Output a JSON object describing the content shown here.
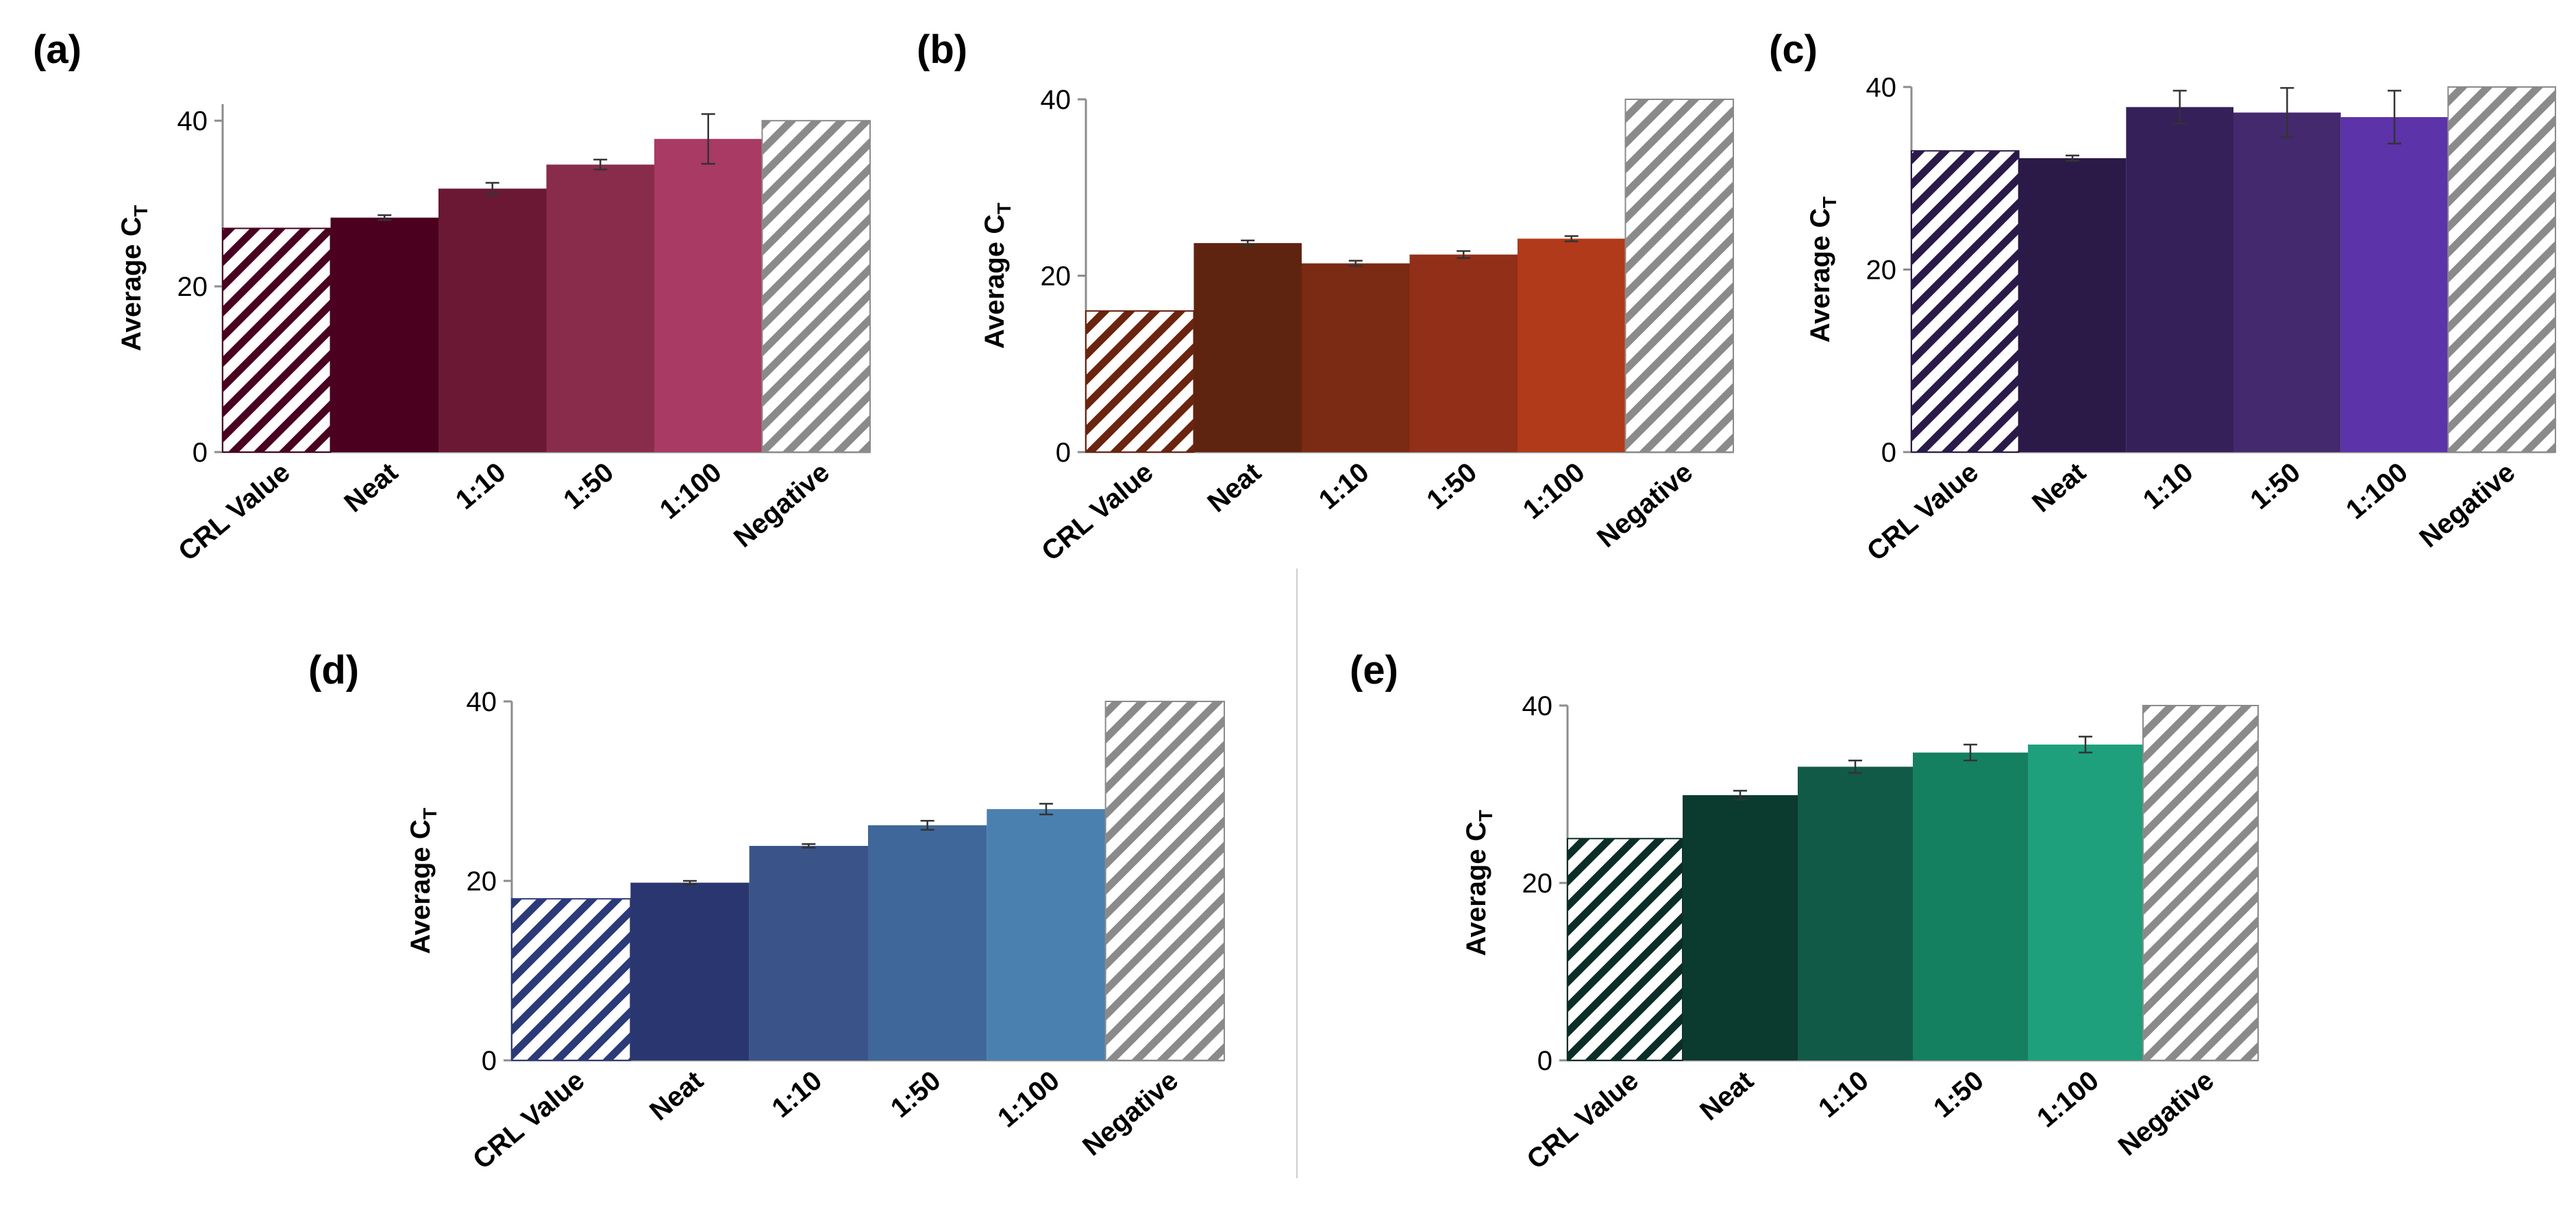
{
  "chart_data": [
    {
      "panel": "(a)",
      "type": "bar",
      "categories": [
        "CRL Value",
        "Neat",
        "1:10",
        "1:50",
        "1:100",
        "Negative"
      ],
      "values": [
        27,
        28.3,
        31.8,
        34.7,
        37.8,
        40
      ],
      "errors": [
        0,
        0.3,
        0.7,
        0.6,
        3.0,
        0
      ],
      "colors": [
        "#4a0020",
        "#4b001f",
        "#6a1834",
        "#892c4c",
        "#a83a64",
        "#8a8a8a"
      ],
      "hatched": [
        true,
        false,
        false,
        false,
        false,
        true
      ],
      "ylabel": "Average C",
      "ylabel_sub": "T",
      "ylim": [
        0,
        42
      ],
      "yticks": [
        0,
        20,
        40
      ]
    },
    {
      "panel": "(b)",
      "type": "bar",
      "categories": [
        "CRL Value",
        "Neat",
        "1:10",
        "1:50",
        "1:100",
        "Negative"
      ],
      "values": [
        16,
        23.7,
        21.4,
        22.4,
        24.2,
        40
      ],
      "errors": [
        0,
        0.3,
        0.3,
        0.4,
        0.3,
        0
      ],
      "colors": [
        "#6a2410",
        "#5f2410",
        "#7b2a13",
        "#922f18",
        "#b03a19",
        "#8a8a8a"
      ],
      "hatched": [
        true,
        false,
        false,
        false,
        false,
        true
      ],
      "ylabel": "Average C",
      "ylabel_sub": "T",
      "ylim": [
        0,
        40
      ],
      "yticks": [
        0,
        20,
        40
      ]
    },
    {
      "panel": "(c)",
      "type": "bar",
      "categories": [
        "CRL Value",
        "Neat",
        "1:10",
        "1:50",
        "1:100",
        "Negative"
      ],
      "values": [
        33,
        32.2,
        37.8,
        37.2,
        36.7,
        40
      ],
      "errors": [
        0,
        0.3,
        1.8,
        2.7,
        2.9,
        0
      ],
      "colors": [
        "#2a1a4a",
        "#2b1a48",
        "#35205a",
        "#44296e",
        "#5c33a8",
        "#8a8a8a"
      ],
      "hatched": [
        true,
        false,
        false,
        false,
        false,
        true
      ],
      "ylabel": "Average C",
      "ylabel_sub": "T",
      "ylim": [
        0,
        40
      ],
      "yticks": [
        0,
        20,
        40
      ]
    },
    {
      "panel": "(d)",
      "type": "bar",
      "categories": [
        "CRL Value",
        "Neat",
        "1:10",
        "1:50",
        "1:100",
        "Negative"
      ],
      "values": [
        18,
        19.8,
        23.9,
        26.2,
        28.0,
        40
      ],
      "errors": [
        0,
        0.2,
        0.2,
        0.5,
        0.6,
        0
      ],
      "colors": [
        "#2b3a78",
        "#2a3670",
        "#3a5388",
        "#40679a",
        "#4a80b0",
        "#8a8a8a"
      ],
      "hatched": [
        true,
        false,
        false,
        false,
        false,
        true
      ],
      "ylabel": "Average C",
      "ylabel_sub": "T",
      "ylim": [
        0,
        40
      ],
      "yticks": [
        0,
        20,
        40
      ]
    },
    {
      "panel": "(e)",
      "type": "bar",
      "categories": [
        "CRL Value",
        "Neat",
        "1:10",
        "1:50",
        "1:100",
        "Negative"
      ],
      "values": [
        25,
        29.9,
        33.1,
        34.7,
        35.6,
        40
      ],
      "errors": [
        0,
        0.5,
        0.7,
        0.9,
        0.9,
        0
      ],
      "colors": [
        "#0c2e28",
        "#0b3a2f",
        "#125a48",
        "#14805f",
        "#1ea07c",
        "#8a8a8a"
      ],
      "hatched": [
        true,
        false,
        false,
        false,
        false,
        true
      ],
      "ylabel": "Average C",
      "ylabel_sub": "T",
      "ylim": [
        0,
        40
      ],
      "yticks": [
        0,
        20,
        40
      ]
    }
  ]
}
